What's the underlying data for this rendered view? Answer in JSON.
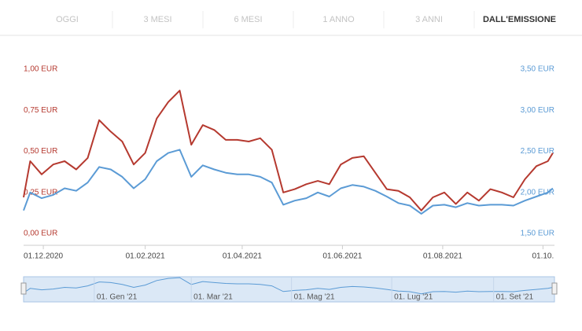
{
  "tabs": [
    "OGGI",
    "3 MESI",
    "6 MESI",
    "1 ANNO",
    "3 ANNI",
    "DALL'EMISSIONE"
  ],
  "active_tab": 5,
  "chart_data": {
    "type": "line",
    "x": [
      "2020-11-19",
      "2020-11-23",
      "2020-11-30",
      "2020-12-07",
      "2020-12-14",
      "2020-12-21",
      "2020-12-28",
      "2021-01-04",
      "2021-01-11",
      "2021-01-18",
      "2021-01-25",
      "2021-02-01",
      "2021-02-08",
      "2021-02-15",
      "2021-02-22",
      "2021-03-01",
      "2021-03-08",
      "2021-03-15",
      "2021-03-22",
      "2021-03-29",
      "2021-04-05",
      "2021-04-12",
      "2021-04-19",
      "2021-04-26",
      "2021-05-03",
      "2021-05-10",
      "2021-05-17",
      "2021-05-24",
      "2021-05-31",
      "2021-06-07",
      "2021-06-14",
      "2021-06-21",
      "2021-06-28",
      "2021-07-05",
      "2021-07-12",
      "2021-07-19",
      "2021-07-26",
      "2021-08-02",
      "2021-08-09",
      "2021-08-16",
      "2021-08-23",
      "2021-08-30",
      "2021-09-06",
      "2021-09-13",
      "2021-09-20",
      "2021-09-27",
      "2021-10-04",
      "2021-10-07"
    ],
    "series": [
      {
        "color": "#b5392f",
        "values": [
          0.22,
          0.44,
          0.36,
          0.42,
          0.44,
          0.39,
          0.46,
          0.69,
          0.62,
          0.56,
          0.42,
          0.49,
          0.7,
          0.8,
          0.87,
          0.54,
          0.66,
          0.63,
          0.57,
          0.57,
          0.56,
          0.58,
          0.51,
          0.25,
          0.27,
          0.3,
          0.32,
          0.3,
          0.42,
          0.46,
          0.47,
          0.37,
          0.27,
          0.26,
          0.22,
          0.14,
          0.22,
          0.25,
          0.18,
          0.25,
          0.2,
          0.27,
          0.25,
          0.22,
          0.33,
          0.41,
          0.44,
          0.49
        ]
      },
      {
        "color": "#5b9bd5",
        "axis": "y2",
        "values": [
          1.78,
          2.0,
          1.93,
          1.97,
          2.05,
          2.02,
          2.12,
          2.31,
          2.28,
          2.19,
          2.05,
          2.16,
          2.38,
          2.48,
          2.52,
          2.19,
          2.33,
          2.28,
          2.24,
          2.22,
          2.22,
          2.19,
          2.12,
          1.85,
          1.9,
          1.93,
          2.0,
          1.95,
          2.05,
          2.09,
          2.07,
          2.02,
          1.95,
          1.87,
          1.84,
          1.74,
          1.84,
          1.85,
          1.82,
          1.87,
          1.84,
          1.85,
          1.85,
          1.84,
          1.9,
          1.95,
          2.0,
          2.05
        ]
      }
    ],
    "xlim": [
      "2020-11-19",
      "2021-10-08"
    ],
    "xticks": [
      {
        "value": "2020-12-01",
        "label": "01.12.2020"
      },
      {
        "value": "2021-02-01",
        "label": "01.02.2021"
      },
      {
        "value": "2021-04-01",
        "label": "01.04.2021"
      },
      {
        "value": "2021-06-01",
        "label": "01.06.2021"
      },
      {
        "value": "2021-08-01",
        "label": "01.08.2021"
      },
      {
        "value": "2021-10-01",
        "label": "01.10."
      }
    ],
    "ylim": [
      0,
      1
    ],
    "yticks": [
      {
        "value": 0,
        "label": "0,00 EUR"
      },
      {
        "value": 0.25,
        "label": "0,25 EUR"
      },
      {
        "value": 0.5,
        "label": "0,50 EUR"
      },
      {
        "value": 0.75,
        "label": "0,75 EUR"
      },
      {
        "value": 1,
        "label": "1,00 EUR"
      }
    ],
    "y2lim": [
      1.5,
      3.5
    ],
    "y2ticks": [
      {
        "value": 1.5,
        "label": "1,50 EUR"
      },
      {
        "value": 2,
        "label": "2,00 EUR"
      },
      {
        "value": 2.5,
        "label": "2,50 EUR"
      },
      {
        "value": 3,
        "label": "3,00 EUR"
      },
      {
        "value": 3.5,
        "label": "3,50 EUR"
      }
    ],
    "navigator": {
      "xticks": [
        {
          "value": "2021-01-01",
          "label": "01. Gen '21"
        },
        {
          "value": "2021-03-01",
          "label": "01. Mar '21"
        },
        {
          "value": "2021-05-01",
          "label": "01. Mag '21"
        },
        {
          "value": "2021-07-01",
          "label": "01. Lug '21"
        },
        {
          "value": "2021-09-01",
          "label": "01. Set '21"
        }
      ]
    }
  }
}
